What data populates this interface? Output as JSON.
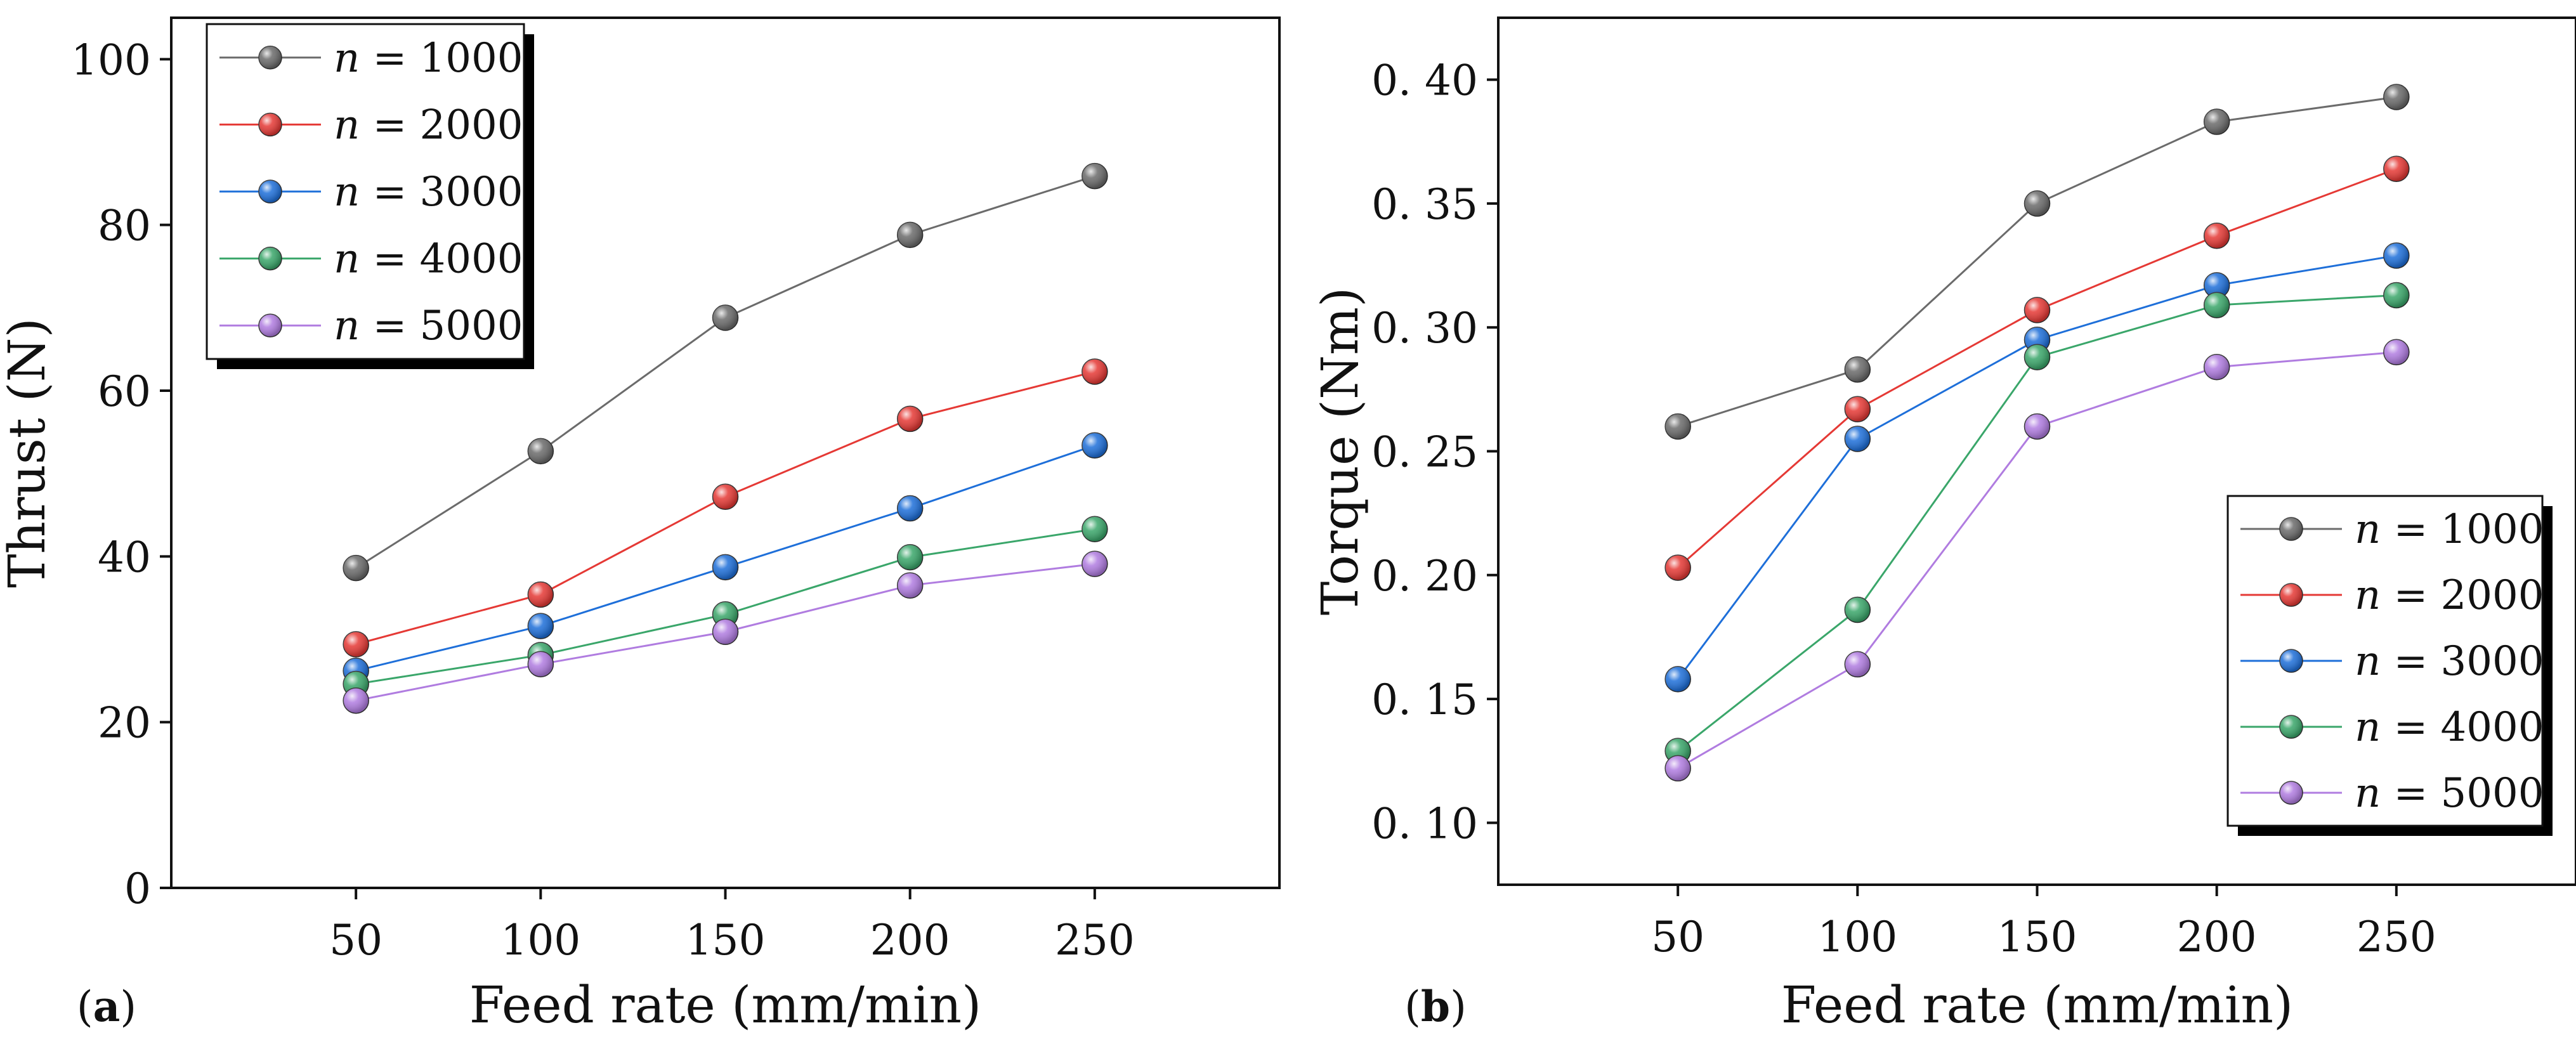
{
  "chart_data": [
    {
      "type": "line",
      "panel_label": "a",
      "title": "",
      "xlabel": "Feed rate (mm/min)",
      "ylabel": "Thrust (N)",
      "x": [
        50,
        100,
        150,
        200,
        250
      ],
      "xlim": [
        0,
        300
      ],
      "ylim": [
        0,
        105
      ],
      "xticks": [
        "50",
        "100",
        "150",
        "200",
        "250"
      ],
      "yticks": [
        "0",
        "20",
        "40",
        "60",
        "80",
        "100"
      ],
      "legend_position": "top-left",
      "series": [
        {
          "name_var": "n",
          "name_rest": " = 1000",
          "color": "#6b6b6b",
          "values": [
            38.6,
            52.7,
            68.8,
            78.8,
            85.9
          ]
        },
        {
          "name_var": "n",
          "name_rest": " = 2000",
          "color": "#e53935",
          "values": [
            29.4,
            35.4,
            47.2,
            56.6,
            62.3
          ]
        },
        {
          "name_var": "n",
          "name_rest": " = 3000",
          "color": "#1e6fd9",
          "values": [
            26.2,
            31.6,
            38.7,
            45.8,
            53.4
          ]
        },
        {
          "name_var": "n",
          "name_rest": " = 4000",
          "color": "#3aa66a",
          "values": [
            24.6,
            28.1,
            33.0,
            39.9,
            43.3
          ]
        },
        {
          "name_var": "n",
          "name_rest": " = 5000",
          "color": "#b07ce0",
          "values": [
            22.6,
            27.0,
            30.9,
            36.5,
            39.1
          ]
        }
      ]
    },
    {
      "type": "line",
      "panel_label": "b",
      "title": "",
      "xlabel": "Feed rate (mm/min)",
      "ylabel": "Torque (Nm)",
      "x": [
        50,
        100,
        150,
        200,
        250
      ],
      "xlim": [
        0,
        300
      ],
      "ylim": [
        0.075,
        0.425
      ],
      "xticks": [
        "50",
        "100",
        "150",
        "200",
        "250"
      ],
      "yticks": [
        "0. 10",
        "0. 15",
        "0. 20",
        "0. 25",
        "0. 30",
        "0. 35",
        "0. 40"
      ],
      "legend_position": "bottom-right",
      "series": [
        {
          "name_var": "n",
          "name_rest": " = 1000",
          "color": "#6b6b6b",
          "values": [
            0.26,
            0.283,
            0.35,
            0.383,
            0.393
          ]
        },
        {
          "name_var": "n",
          "name_rest": " = 2000",
          "color": "#e53935",
          "values": [
            0.203,
            0.267,
            0.307,
            0.337,
            0.364
          ]
        },
        {
          "name_var": "n",
          "name_rest": " = 3000",
          "color": "#1e6fd9",
          "values": [
            0.158,
            0.255,
            0.295,
            0.317,
            0.329
          ]
        },
        {
          "name_var": "n",
          "name_rest": " = 4000",
          "color": "#3aa66a",
          "values": [
            0.129,
            0.186,
            0.288,
            0.309,
            0.313
          ]
        },
        {
          "name_var": "n",
          "name_rest": " = 5000",
          "color": "#b07ce0",
          "values": [
            0.122,
            0.164,
            0.26,
            0.284,
            0.29
          ]
        }
      ]
    }
  ]
}
